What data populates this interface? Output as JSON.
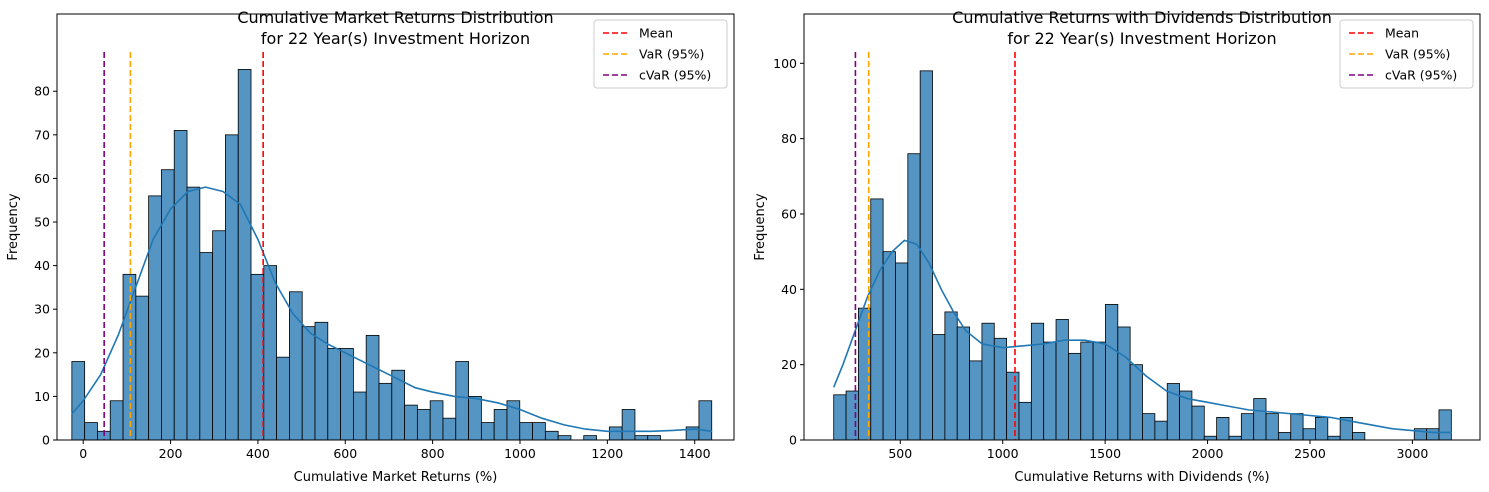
{
  "chart_data": [
    {
      "type": "bar",
      "title": [
        "Cumulative Market Returns Distribution",
        "for 22 Year(s) Investment Horizon"
      ],
      "xlabel": "Cumulative Market Returns (%)",
      "ylabel": "Frequency",
      "xlim": [
        -60,
        1490
      ],
      "ylim": [
        0,
        89
      ],
      "xticks": [
        0,
        200,
        400,
        600,
        800,
        1000,
        1200,
        1400
      ],
      "yticks": [
        0,
        10,
        20,
        30,
        40,
        50,
        60,
        70,
        80
      ],
      "bins": {
        "start": -26,
        "width": 29.3
      },
      "counts": [
        18,
        4,
        2,
        9,
        38,
        33,
        56,
        62,
        71,
        58,
        43,
        48,
        70,
        85,
        38,
        40,
        19,
        34,
        26,
        27,
        21,
        21,
        11,
        24,
        13,
        16,
        8,
        7,
        9,
        5,
        18,
        10,
        4,
        7,
        9,
        4,
        4,
        2,
        1,
        0,
        1,
        0,
        3,
        7,
        1,
        1,
        0,
        0,
        3,
        9
      ],
      "kde": {
        "x": [
          -26,
          0,
          40,
          80,
          120,
          160,
          200,
          240,
          280,
          320,
          360,
          400,
          440,
          480,
          520,
          560,
          600,
          640,
          680,
          720,
          760,
          800,
          850,
          900,
          950,
          1000,
          1050,
          1100,
          1150,
          1200,
          1250,
          1300,
          1350,
          1400,
          1440
        ],
        "y": [
          6,
          9,
          15,
          24,
          35,
          46,
          53,
          57,
          58,
          57,
          54,
          46,
          36,
          29,
          24.5,
          22,
          20,
          18,
          16,
          14,
          12,
          11,
          10,
          9.5,
          8.5,
          7,
          5,
          3.5,
          2.5,
          2,
          2,
          2,
          2.2,
          2.5,
          2
        ]
      },
      "lines": [
        {
          "label": "Mean",
          "x": 412,
          "color": "#ff0000"
        },
        {
          "label": "VaR (95%)",
          "x": 108,
          "color": "#ffa500"
        },
        {
          "label": "cVaR (95%)",
          "x": 48,
          "color": "#800080"
        }
      ],
      "legend": "top-right",
      "bar_color": "#4c8fc0",
      "kde_color": "#1f77b4"
    },
    {
      "type": "bar",
      "title": [
        "Cumulative Returns with Dividends Distribution",
        "for 22 Year(s) Investment Horizon"
      ],
      "xlabel": "Cumulative Returns with Dividends (%)",
      "ylabel": "Frequency",
      "xlim": [
        30,
        3330
      ],
      "ylim": [
        0,
        103
      ],
      "xticks": [
        500,
        1000,
        1500,
        2000,
        2500,
        3000
      ],
      "yticks": [
        0,
        20,
        40,
        60,
        80,
        100
      ],
      "bins": {
        "start": 175,
        "width": 60.3
      },
      "counts": [
        12,
        13,
        35,
        64,
        50,
        47,
        76,
        98,
        28,
        34,
        30,
        21,
        31,
        27,
        18,
        10,
        31,
        26,
        32,
        23,
        26,
        26,
        36,
        30,
        20,
        7,
        5,
        15,
        13,
        9,
        1,
        6,
        1,
        7,
        11,
        7,
        2,
        7,
        3,
        6,
        1,
        6,
        2,
        0,
        0,
        0,
        0,
        3,
        3,
        8
      ],
      "kde": {
        "x": [
          175,
          220,
          280,
          340,
          400,
          460,
          520,
          580,
          640,
          700,
          760,
          820,
          900,
          1000,
          1100,
          1200,
          1300,
          1400,
          1500,
          1600,
          1700,
          1800,
          1900,
          2000,
          2100,
          2200,
          2300,
          2400,
          2500,
          2600,
          2700,
          2800,
          2900,
          3000,
          3100,
          3190
        ],
        "y": [
          14,
          20,
          29,
          38,
          45,
          50,
          53,
          52,
          47,
          40,
          34,
          29,
          25.5,
          24.5,
          25,
          25.5,
          26.5,
          26.5,
          25.5,
          22,
          17,
          13,
          11,
          10,
          9,
          8,
          7.5,
          7,
          6.5,
          6,
          5,
          4,
          3,
          2.5,
          2,
          2
        ]
      },
      "lines": [
        {
          "label": "Mean",
          "x": 1060,
          "color": "#ff0000"
        },
        {
          "label": "VaR (95%)",
          "x": 346,
          "color": "#ffa500"
        },
        {
          "label": "cVaR (95%)",
          "x": 281,
          "color": "#800080"
        }
      ],
      "legend": "top-right",
      "bar_color": "#4c8fc0",
      "kde_color": "#1f77b4"
    }
  ]
}
